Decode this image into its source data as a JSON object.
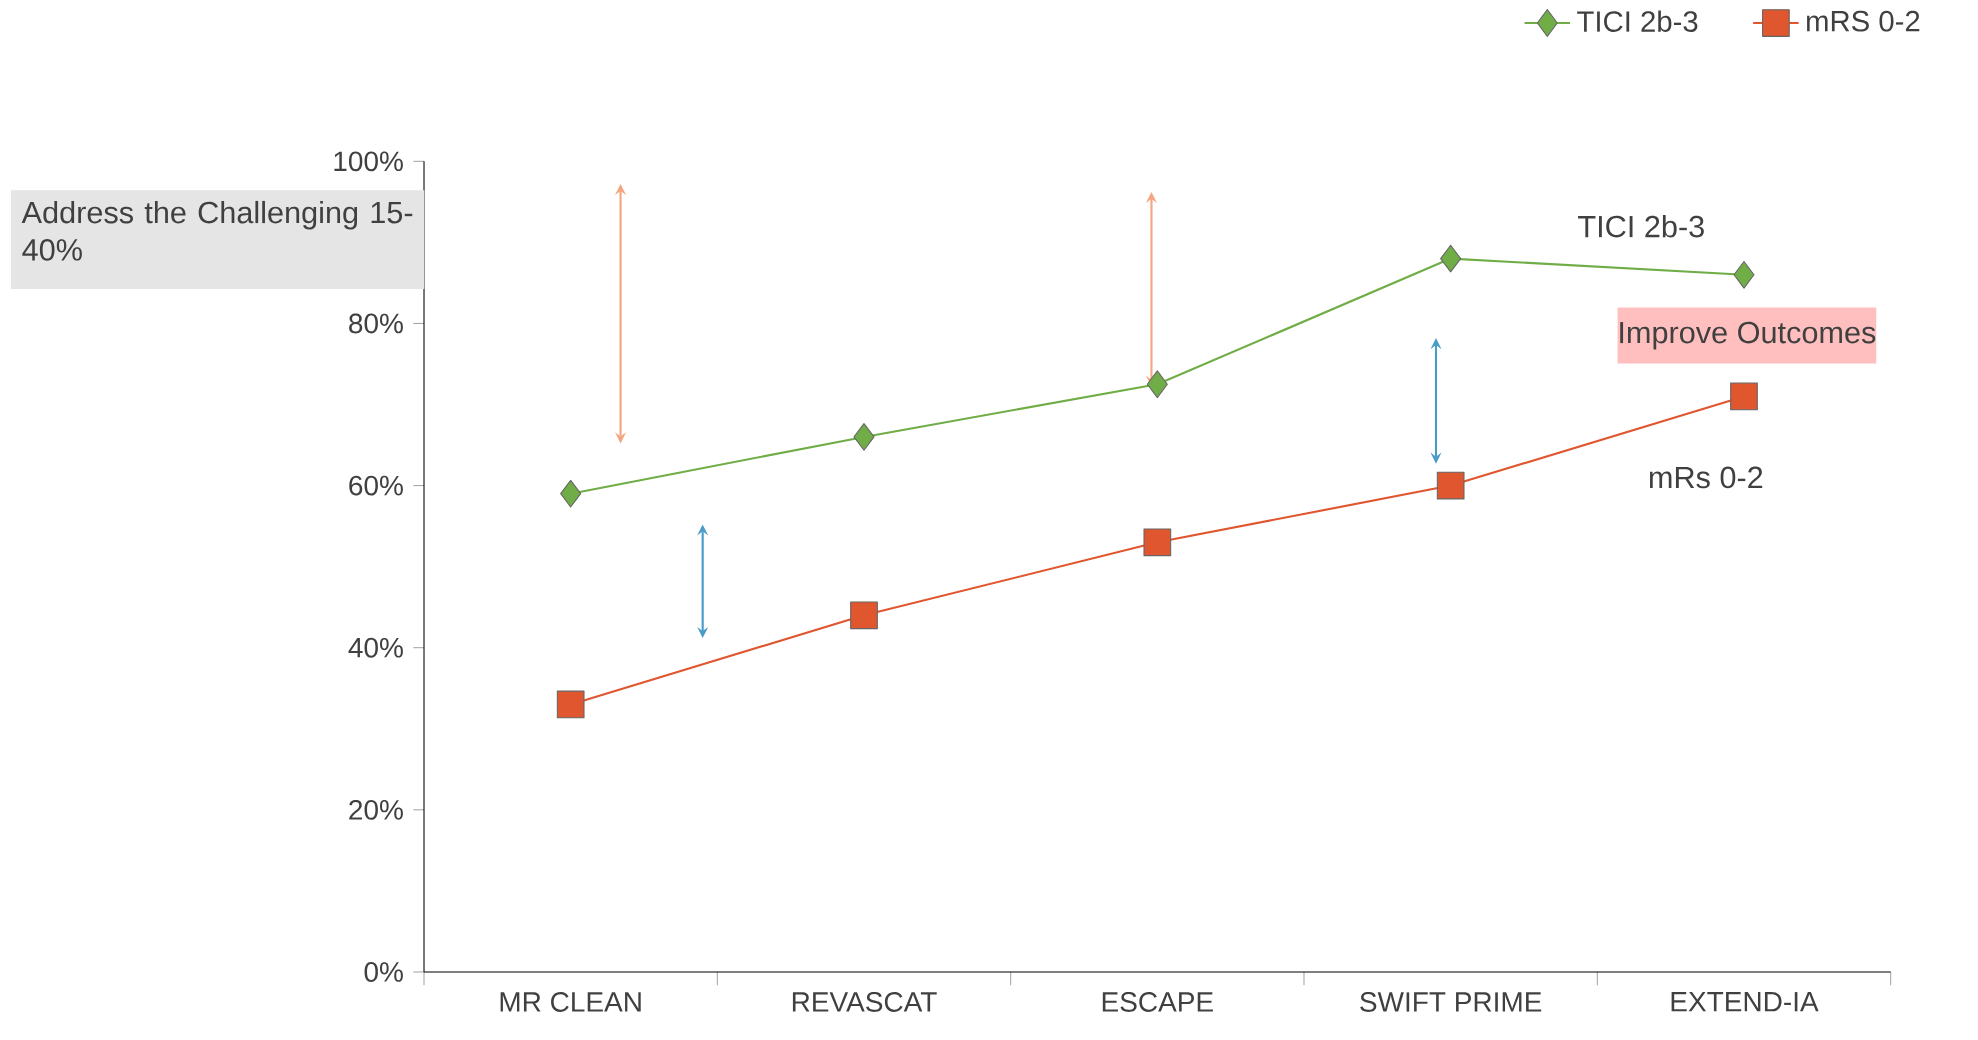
{
  "chart_data": {
    "type": "line",
    "categories": [
      "MR CLEAN",
      "REVASCAT",
      "ESCAPE",
      "SWIFT PRIME",
      "EXTEND-IA"
    ],
    "series": [
      {
        "name": "TICI 2b-3",
        "color": "#70ad47",
        "marker": "diamond",
        "values": [
          59,
          66,
          72.5,
          88,
          86
        ]
      },
      {
        "name": "mRS 0-2",
        "color": "#e0562f",
        "marker": "square",
        "values": [
          33,
          44,
          53,
          60,
          71
        ]
      }
    ],
    "ylim": [
      0,
      100
    ],
    "yticks": [
      {
        "value": 0,
        "label": "0%"
      },
      {
        "value": 20,
        "label": "20%"
      },
      {
        "value": 40,
        "label": "40%"
      },
      {
        "value": 60,
        "label": "60%"
      },
      {
        "value": 80,
        "label": "80%"
      },
      {
        "value": 100,
        "label": "100%"
      }
    ],
    "legend": "top right",
    "grid": false,
    "annotations": [
      "Address the Challenging 15-40%",
      "Improve Outcomes",
      "TICI 2b-3",
      "mRs 0-2"
    ]
  }
}
